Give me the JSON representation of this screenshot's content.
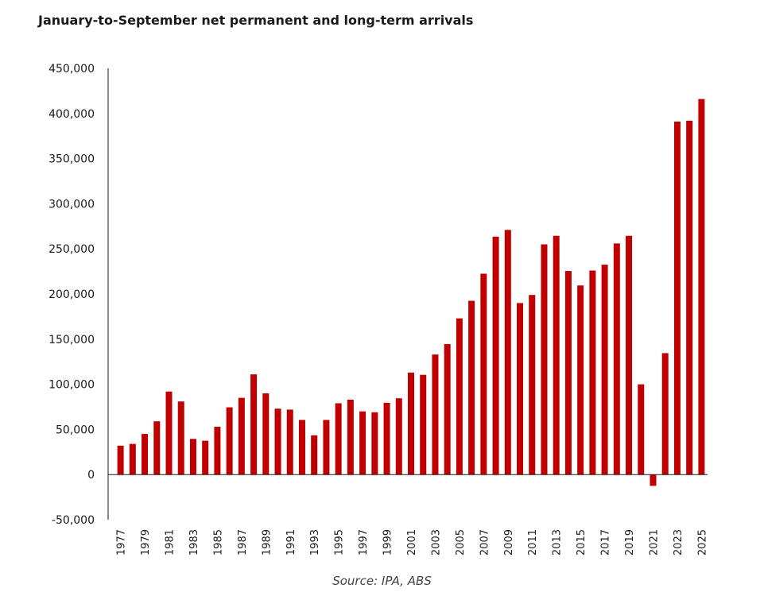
{
  "source": {
    "label": "Source:",
    "text": "IPA, ABS"
  },
  "chart_data": {
    "type": "bar",
    "title": "January-to-September net permanent and long-term arrivals",
    "xlabel": "",
    "ylabel": "",
    "ylim": [
      -50000,
      450000
    ],
    "yticks": [
      -50000,
      0,
      50000,
      100000,
      150000,
      200000,
      250000,
      300000,
      350000,
      400000,
      450000
    ],
    "ytick_labels": [
      "-50,000",
      "0",
      "50,000",
      "100,000",
      "150,000",
      "200,000",
      "250,000",
      "300,000",
      "350,000",
      "400,000",
      "450,000"
    ],
    "categories": [
      "1977",
      "1978",
      "1979",
      "1980",
      "1981",
      "1982",
      "1983",
      "1984",
      "1985",
      "1986",
      "1987",
      "1988",
      "1989",
      "1990",
      "1991",
      "1992",
      "1993",
      "1994",
      "1995",
      "1996",
      "1997",
      "1998",
      "1999",
      "2000",
      "2001",
      "2002",
      "2003",
      "2004",
      "2005",
      "2006",
      "2007",
      "2008",
      "2009",
      "2010",
      "2011",
      "2012",
      "2013",
      "2014",
      "2015",
      "2016",
      "2017",
      "2018",
      "2019",
      "2020",
      "2021",
      "2022",
      "2023",
      "2024",
      "2025"
    ],
    "xtick_labels": [
      "1977",
      "1979",
      "1981",
      "1983",
      "1985",
      "1987",
      "1989",
      "1991",
      "1993",
      "1995",
      "1997",
      "1999",
      "2001",
      "2003",
      "2005",
      "2007",
      "2009",
      "2011",
      "2013",
      "2015",
      "2017",
      "2019",
      "2021",
      "2023",
      "2025"
    ],
    "values": [
      32000,
      34000,
      45000,
      59000,
      92000,
      81000,
      39500,
      37500,
      53000,
      74500,
      85000,
      111000,
      90000,
      73000,
      72000,
      60500,
      43500,
      60500,
      79000,
      83000,
      70000,
      69000,
      79500,
      84500,
      113000,
      110500,
      133000,
      144500,
      173000,
      192500,
      222500,
      263500,
      271000,
      190000,
      199000,
      255000,
      264500,
      225500,
      209500,
      226000,
      232500,
      256000,
      264500,
      100000,
      -12500,
      134500,
      391000,
      392000,
      416000
    ],
    "bar_color": "#c00000",
    "grid": false,
    "legend": "none"
  }
}
